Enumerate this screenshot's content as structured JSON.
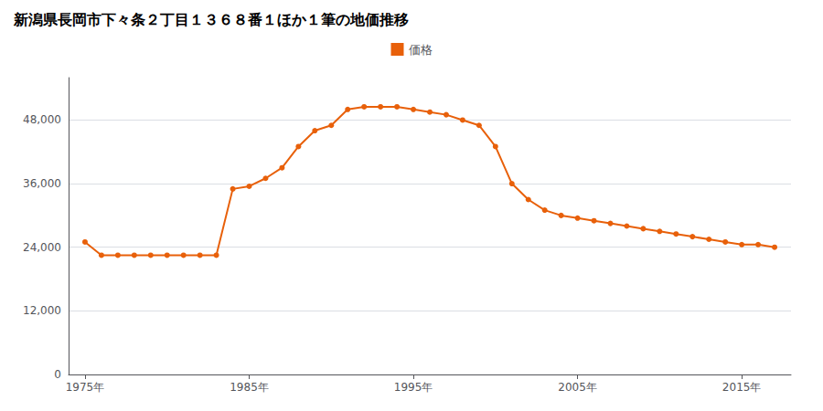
{
  "chart_data": {
    "type": "line",
    "title": "新潟県長岡市下々条２丁目１３６８番１ほか１筆の地価推移",
    "x": [
      1975,
      1976,
      1977,
      1978,
      1979,
      1980,
      1981,
      1982,
      1983,
      1984,
      1985,
      1986,
      1987,
      1988,
      1989,
      1990,
      1991,
      1992,
      1993,
      1994,
      1995,
      1996,
      1997,
      1998,
      1999,
      2000,
      2001,
      2002,
      2003,
      2004,
      2005,
      2006,
      2007,
      2008,
      2009,
      2010,
      2011,
      2012,
      2013,
      2014,
      2015,
      2016,
      2017
    ],
    "series": [
      {
        "name": "価格",
        "color": "#e8600a",
        "marker": "circle",
        "values": [
          25000,
          22500,
          22500,
          22500,
          22500,
          22500,
          22500,
          22500,
          22500,
          35000,
          35500,
          37000,
          39000,
          43000,
          46000,
          47000,
          50000,
          50500,
          50500,
          50500,
          50000,
          49500,
          49000,
          48000,
          47000,
          43000,
          36000,
          33000,
          31000,
          30000,
          29500,
          29000,
          28500,
          28000,
          27500,
          27000,
          26500,
          26000,
          25500,
          25000,
          24500,
          24500,
          24000
        ]
      }
    ],
    "xlim": [
      1974,
      2018
    ],
    "xticks": [
      {
        "value": 1975,
        "label": "1975年"
      },
      {
        "value": 1985,
        "label": "1985年"
      },
      {
        "value": 1995,
        "label": "1995年"
      },
      {
        "value": 2005,
        "label": "2005年"
      },
      {
        "value": 2015,
        "label": "2015年"
      }
    ],
    "ylim": [
      0,
      56000
    ],
    "yticks": [
      0,
      {
        "value": 12000,
        "label": "12,000"
      },
      {
        "value": 24000,
        "label": "24,000"
      },
      {
        "value": 36000,
        "label": "36,000"
      },
      {
        "value": 48000,
        "label": "48,000"
      }
    ],
    "grid": "y",
    "legend": "top"
  }
}
